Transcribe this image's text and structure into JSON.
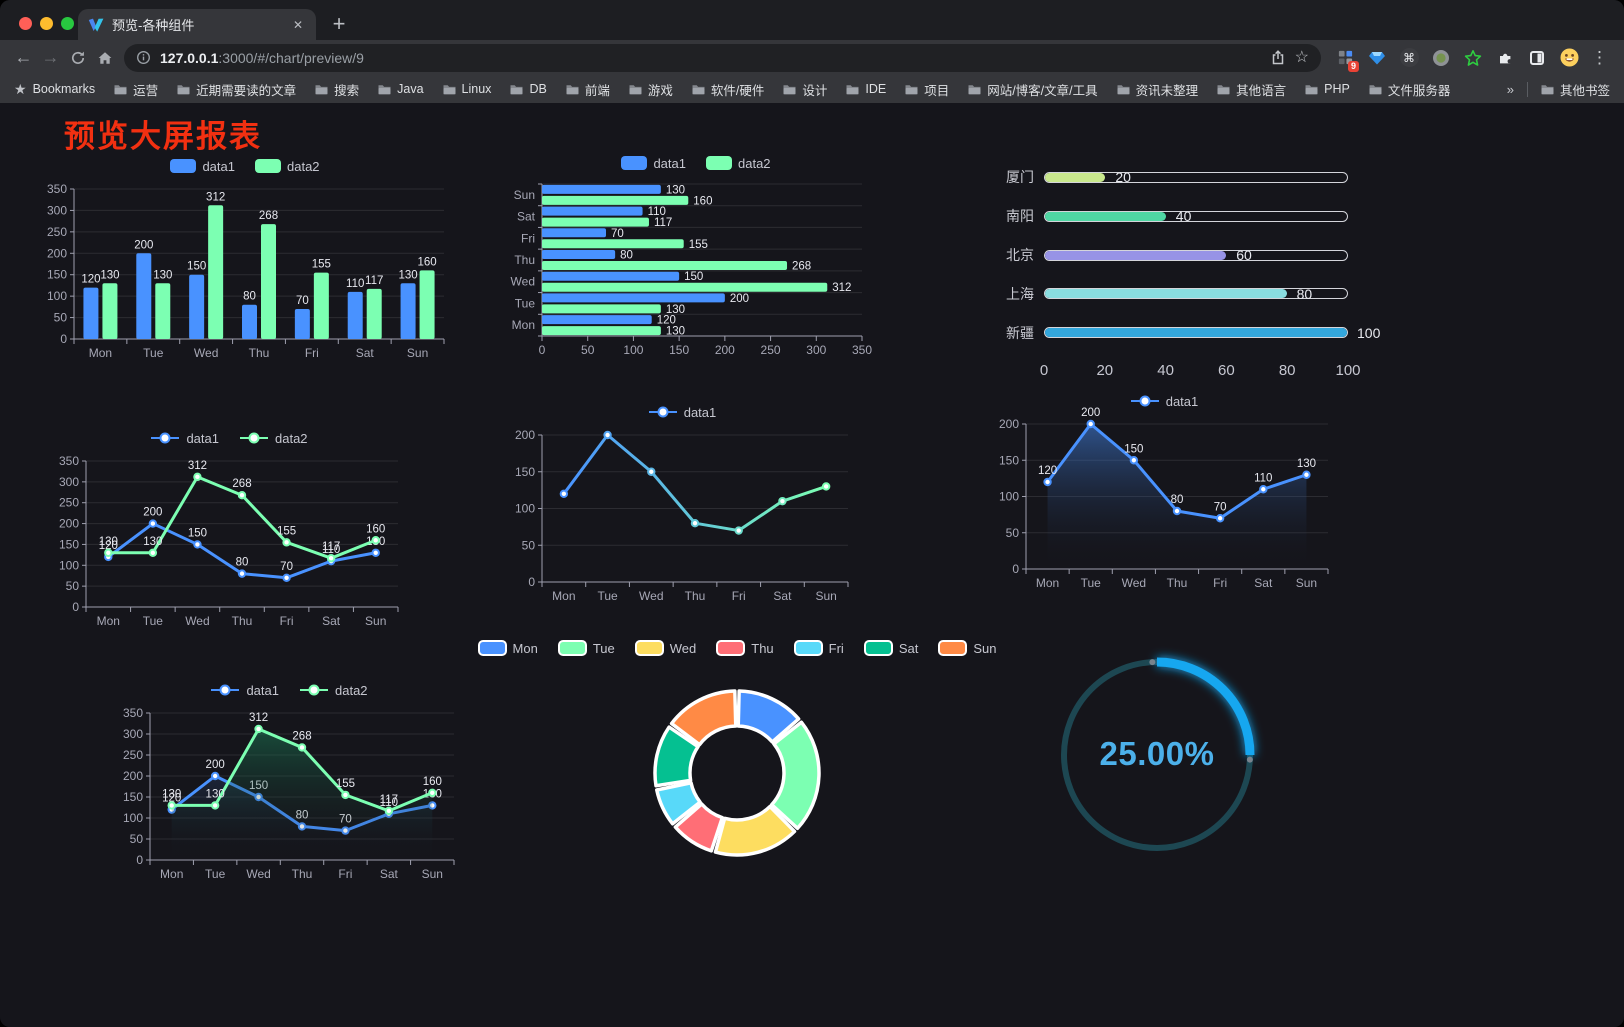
{
  "browser": {
    "tab_title": "预览-各种组件",
    "url_host": "127.0.0.1",
    "url_rest": ":3000/#/chart/preview/9",
    "extension_badge": "9",
    "bookmarks_label": "Bookmarks",
    "bookmarks": [
      "运营",
      "近期需要读的文章",
      "搜索",
      "Java",
      "Linux",
      "DB",
      "前端",
      "游戏",
      "软件/硬件",
      "设计",
      "IDE",
      "项目",
      "网站/博客/文章/工具",
      "资讯未整理",
      "其他语言",
      "PHP",
      "文件服务器"
    ],
    "other_bookmarks": "其他书签"
  },
  "icons": {
    "back": "←",
    "forward": "→",
    "close": "✕",
    "plus": "+",
    "overflow": "»",
    "dots": "⋮",
    "command": "⌘",
    "star_outline": "☆",
    "bookmark_star": "★"
  },
  "page": {
    "title": "预览大屏报表",
    "title_color": "#f23011",
    "background": "#15151b"
  },
  "chart_data": [
    {
      "type": "bar",
      "title": "",
      "legend": [
        "data1",
        "data2"
      ],
      "legend_position": "top",
      "grid": true,
      "categories": [
        "Mon",
        "Tue",
        "Wed",
        "Thu",
        "Fri",
        "Sat",
        "Sun"
      ],
      "series": [
        {
          "name": "data1",
          "color": "#4992ff",
          "values": [
            120,
            200,
            150,
            80,
            70,
            110,
            130
          ]
        },
        {
          "name": "data2",
          "color": "#7cffb2",
          "values": [
            130,
            130,
            312,
            268,
            155,
            117,
            160
          ]
        }
      ],
      "ylim": [
        0,
        350
      ],
      "yticks": [
        0,
        50,
        100,
        150,
        200,
        250,
        300,
        350
      ],
      "labels": true
    },
    {
      "type": "hbar",
      "title": "",
      "legend": [
        "data1",
        "data2"
      ],
      "legend_position": "top",
      "grid": true,
      "categories": [
        "Mon",
        "Tue",
        "Wed",
        "Thu",
        "Fri",
        "Sat",
        "Sun"
      ],
      "category_order_top_to_bottom": [
        "Sun",
        "Sat",
        "Fri",
        "Thu",
        "Wed",
        "Tue",
        "Mon"
      ],
      "series": [
        {
          "name": "data1",
          "color": "#4992ff",
          "values": [
            120,
            200,
            150,
            80,
            70,
            110,
            130
          ]
        },
        {
          "name": "data2",
          "color": "#7cffb2",
          "values": [
            130,
            130,
            312,
            268,
            155,
            117,
            160
          ]
        }
      ],
      "xlim": [
        0,
        350
      ],
      "xticks": [
        0,
        50,
        100,
        150,
        200,
        250,
        300,
        350
      ],
      "labels": true
    },
    {
      "type": "progress",
      "max": 100,
      "axis_ticks": [
        0,
        20,
        40,
        60,
        80,
        100
      ],
      "items": [
        {
          "label": "厦门",
          "value": 20,
          "color": "#c9e88d"
        },
        {
          "label": "南阳",
          "value": 40,
          "color": "#4fd6a3"
        },
        {
          "label": "北京",
          "value": 60,
          "color": "#9793e6"
        },
        {
          "label": "上海",
          "value": 80,
          "color": "#89dde0"
        },
        {
          "label": "新疆",
          "value": 100,
          "color": "#33a7dd"
        }
      ]
    },
    {
      "type": "line",
      "title": "",
      "legend": [
        "data1",
        "data2"
      ],
      "legend_position": "top",
      "grid": true,
      "categories": [
        "Mon",
        "Tue",
        "Wed",
        "Thu",
        "Fri",
        "Sat",
        "Sun"
      ],
      "series": [
        {
          "name": "data1",
          "color": "#4992ff",
          "values": [
            120,
            200,
            150,
            80,
            70,
            110,
            130
          ]
        },
        {
          "name": "data2",
          "color": "#7cffb2",
          "values": [
            130,
            130,
            312,
            268,
            155,
            117,
            160
          ]
        }
      ],
      "ylim": [
        0,
        350
      ],
      "yticks": [
        0,
        50,
        100,
        150,
        200,
        250,
        300,
        350
      ],
      "labels": true
    },
    {
      "type": "line",
      "title": "",
      "legend": [
        "data1"
      ],
      "legend_position": "top",
      "grid": true,
      "categories": [
        "Mon",
        "Tue",
        "Wed",
        "Thu",
        "Fri",
        "Sat",
        "Sun"
      ],
      "series": [
        {
          "name": "data1",
          "color": "#4992ff",
          "gradient": [
            "#4992ff",
            "#7cffb2"
          ],
          "values": [
            120,
            200,
            150,
            80,
            70,
            110,
            130
          ]
        }
      ],
      "ylim": [
        0,
        200
      ],
      "yticks": [
        0,
        50,
        100,
        150,
        200
      ],
      "labels": false
    },
    {
      "type": "line",
      "title": "",
      "legend": [
        "data1"
      ],
      "legend_position": "top",
      "grid": true,
      "categories": [
        "Mon",
        "Tue",
        "Wed",
        "Thu",
        "Fri",
        "Sat",
        "Sun"
      ],
      "series": [
        {
          "name": "data1",
          "color": "#4992ff",
          "area": true,
          "area_color": "rgba(73,146,255,0.5)",
          "values": [
            120,
            200,
            150,
            80,
            70,
            110,
            130
          ]
        }
      ],
      "ylim": [
        0,
        200
      ],
      "yticks": [
        0,
        50,
        100,
        150,
        200
      ],
      "labels": true
    },
    {
      "type": "line",
      "title": "",
      "legend": [
        "data1",
        "data2"
      ],
      "legend_position": "top",
      "grid": true,
      "categories": [
        "Mon",
        "Tue",
        "Wed",
        "Thu",
        "Fri",
        "Sat",
        "Sun"
      ],
      "series": [
        {
          "name": "data1",
          "color": "#4992ff",
          "area": true,
          "area_color": "rgba(73,146,255,0.4)",
          "values": [
            120,
            200,
            150,
            80,
            70,
            110,
            130
          ]
        },
        {
          "name": "data2",
          "color": "#7cffb2",
          "area": true,
          "area_color": "rgba(28,148,100,0.55)",
          "values": [
            130,
            130,
            312,
            268,
            155,
            117,
            160
          ]
        }
      ],
      "ylim": [
        0,
        350
      ],
      "yticks": [
        0,
        50,
        100,
        150,
        200,
        250,
        300,
        350
      ],
      "labels": true
    },
    {
      "type": "donut",
      "title": "",
      "legend_position": "top",
      "items": [
        {
          "label": "Mon",
          "value": 120,
          "color": "#4992ff"
        },
        {
          "label": "Tue",
          "value": 200,
          "color": "#7cffb2"
        },
        {
          "label": "Wed",
          "value": 150,
          "color": "#fddd60"
        },
        {
          "label": "Thu",
          "value": 80,
          "color": "#ff6e76"
        },
        {
          "label": "Fri",
          "value": 70,
          "color": "#58d9f9"
        },
        {
          "label": "Sat",
          "value": 110,
          "color": "#05c091"
        },
        {
          "label": "Sun",
          "value": 130,
          "color": "#ff8a45"
        }
      ]
    },
    {
      "type": "gauge",
      "text": "25.00%",
      "percent": 25,
      "color": "#15a7f0",
      "track_color": "#1d4752",
      "text_color": "#4cb0ea"
    }
  ]
}
